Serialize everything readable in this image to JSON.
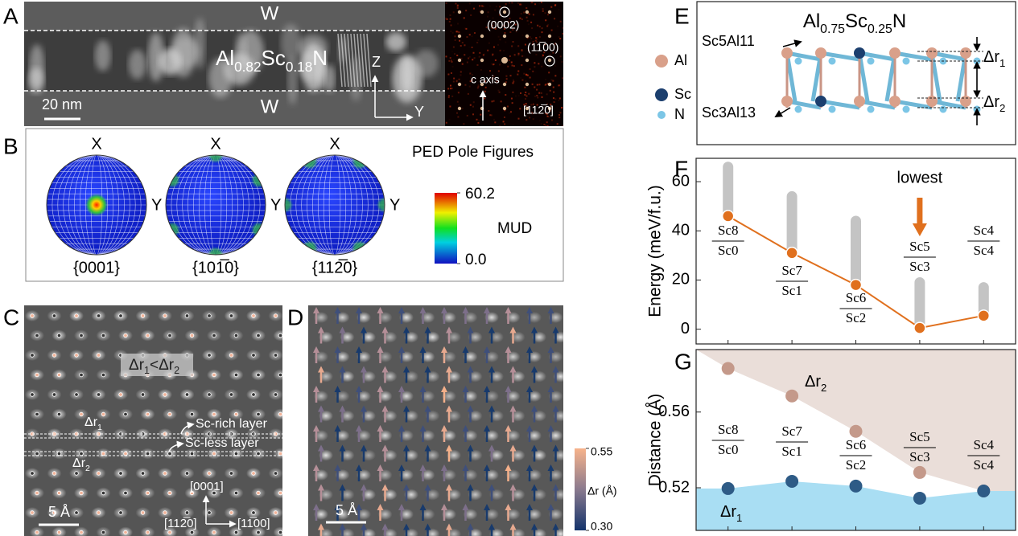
{
  "panels": {
    "A": {
      "label": "A",
      "top_layer": "W",
      "bottom_layer": "W",
      "formula": [
        "Al",
        "0.82",
        "Sc",
        "0.18",
        "N"
      ],
      "scale_bar": "20 nm",
      "axis_z": "Z",
      "axis_y": "Y",
      "spot_top": "(0002)",
      "spot_right": "(11̅00)",
      "c_axis": "c axis",
      "zone_axis": "[112̅0]"
    },
    "B": {
      "label": "B",
      "title": "PED Pole Figures",
      "poles": [
        {
          "top": "X",
          "right": "Y",
          "name": "{0001}"
        },
        {
          "top": "X",
          "right": "Y",
          "name": "{101̅0}"
        },
        {
          "top": "X",
          "right": "Y",
          "name": "{112̅0}"
        }
      ],
      "colorbar": {
        "label": "MUD",
        "lim": [
          0,
          60.2
        ],
        "ticks": [
          {
            "value": 0,
            "label": "0.0"
          },
          60.2
        ]
      }
    },
    "C": {
      "label": "C",
      "relation": [
        "Δr",
        "1",
        "<Δr",
        "2"
      ],
      "dr1": [
        "Δr",
        "1"
      ],
      "dr2": [
        "Δr",
        "2"
      ],
      "rich_layer": "Sc-rich layer",
      "less_layer": "Sc-less layer",
      "dir_up": "[0001]",
      "dir_left": "[112̅0]",
      "dir_right": "[11̅00]",
      "scale_bar": "5 Å"
    },
    "D": {
      "label": "D",
      "scale_bar": "5 Å",
      "colorbar": {
        "label": "Δr (Å)",
        "lim": [
          0.3,
          0.55
        ],
        "ticks": [
          {
            "value": 0.3,
            "label": "0.30"
          },
          0.55
        ]
      }
    },
    "E": {
      "label": "E",
      "formula": [
        "Al",
        "0.75",
        "Sc",
        "0.25",
        "N"
      ],
      "legend": [
        "Al",
        "Sc",
        "N"
      ],
      "top_config": "Sc5Al11",
      "bottom_config": "Sc3Al13",
      "dr1": [
        "Δr",
        "1"
      ],
      "dr2": [
        "Δr",
        "2"
      ]
    }
  },
  "chart_data": [
    {
      "type": "line",
      "panel_label": "F",
      "ylabel": "Energy (meV/f.u.)",
      "categories": [
        {
          "top": "Sc8",
          "bottom": "Sc0"
        },
        {
          "top": "Sc7",
          "bottom": "Sc1"
        },
        {
          "top": "Sc6",
          "bottom": "Sc2"
        },
        {
          "top": "Sc5",
          "bottom": "Sc3"
        },
        {
          "top": "Sc4",
          "bottom": "Sc4"
        }
      ],
      "values": [
        46,
        31,
        18,
        0.5,
        5.5
      ],
      "color": "#e0701e",
      "spread": {
        "color": "#c4c4c4",
        "low": [
          46,
          31,
          18,
          0.5,
          5.5
        ],
        "high": [
          66,
          54,
          44,
          19,
          17
        ]
      },
      "annotation": "lowest",
      "ylim": [
        -6,
        69.5
      ],
      "yticks": [
        0,
        20,
        40,
        60
      ]
    },
    {
      "type": "dots",
      "panel_label": "G",
      "ylabel": "Distance (Å)",
      "categories": [
        {
          "top": "Sc8",
          "bottom": "Sc0"
        },
        {
          "top": "Sc7",
          "bottom": "Sc1"
        },
        {
          "top": "Sc6",
          "bottom": "Sc2"
        },
        {
          "top": "Sc5",
          "bottom": "Sc3"
        },
        {
          "top": "Sc4",
          "bottom": "Sc4"
        }
      ],
      "series": [
        {
          "name": [
            "Δr",
            "2"
          ],
          "color": "#c4998a",
          "area_color": "#eaded9",
          "values": [
            0.583,
            0.5685,
            0.5498,
            0.5281,
            0.5183
          ]
        },
        {
          "name": [
            "Δr",
            "1"
          ],
          "color": "#2e5b86",
          "area_color": "#a9def3",
          "values": [
            0.5196,
            0.5234,
            0.5209,
            0.5145,
            0.5183
          ]
        }
      ],
      "ylim": [
        0.4975,
        0.593
      ],
      "yticks": [
        0.52,
        0.56
      ]
    }
  ]
}
